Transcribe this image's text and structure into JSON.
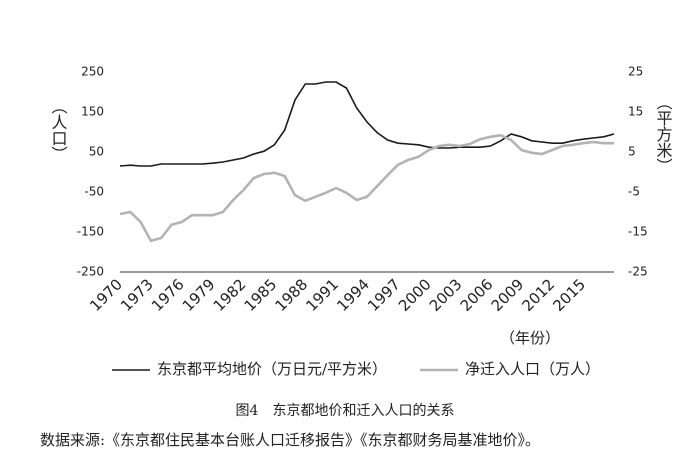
{
  "chart_data": {
    "type": "line",
    "categories": [
      "1970",
      null,
      null,
      "1973",
      null,
      null,
      "1976",
      null,
      null,
      "1979",
      null,
      null,
      "1982",
      null,
      null,
      "1985",
      null,
      null,
      "1988",
      null,
      null,
      "1991",
      null,
      null,
      "1994",
      null,
      null,
      "1997",
      null,
      null,
      "2000",
      null,
      null,
      "2003",
      null,
      null,
      "2006",
      null,
      null,
      "2009",
      null,
      null,
      "2012",
      null,
      null,
      "2015",
      null,
      null,
      null
    ],
    "x_label": "（年份）",
    "y_label": "（人口）",
    "y2_label": "（平方米）",
    "ylim": [
      -250,
      250
    ],
    "yticks": [
      -250,
      -150,
      -50,
      50,
      150,
      250
    ],
    "y2lim": [
      -25,
      25
    ],
    "y2ticks": [
      -25,
      -15,
      -5,
      5,
      15,
      25
    ],
    "legend": "bottom",
    "series": [
      {
        "name": "东京都平均地价（万日元/平方米）",
        "color": "#1a1a1a",
        "axis": "y2",
        "values": [
          1.5,
          1.7,
          1.5,
          1.5,
          2.0,
          2.0,
          2.0,
          2.0,
          2.0,
          2.2,
          2.5,
          3.0,
          3.5,
          4.5,
          5.2,
          6.8,
          10.5,
          18,
          22,
          22,
          22.5,
          22.5,
          21,
          16,
          12.5,
          9.8,
          8,
          7.2,
          7,
          6.8,
          6.2,
          6,
          6,
          6.2,
          6.2,
          6.2,
          6.5,
          7.8,
          9.5,
          8.8,
          7.8,
          7.5,
          7.2,
          7.2,
          7.8,
          8.2,
          8.5,
          8.8,
          9.5
        ]
      },
      {
        "name": "净迁入人口（万人）",
        "color": "#b3b3b3",
        "values": [
          -105,
          -100,
          -125,
          -172,
          -165,
          -132,
          -125,
          -108,
          -108,
          -108,
          -100,
          -70,
          -45,
          -15,
          -5,
          -2,
          -10,
          -58,
          -72,
          -62,
          -52,
          -40,
          -52,
          -70,
          -62,
          -35,
          -8,
          18,
          30,
          38,
          55,
          65,
          68,
          65,
          70,
          82,
          88,
          92,
          80,
          55,
          48,
          45,
          55,
          65,
          68,
          72,
          75,
          72,
          72
        ]
      }
    ],
    "caption": "图4　东京都地价和迁入人口的关系",
    "source": "数据来源:《东京都住民基本台账人口迁移报告》《东京都财务局基准地价》。"
  }
}
